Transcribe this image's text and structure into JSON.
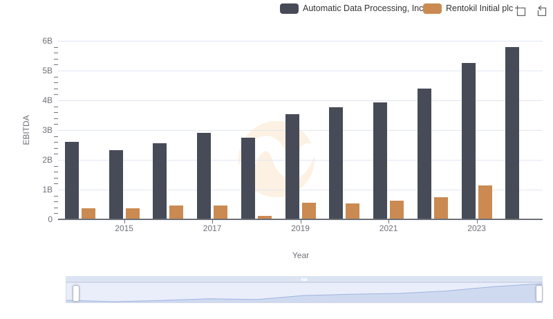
{
  "legend": {
    "items": [
      {
        "label": "Automatic Data Processing, Inc.",
        "color": "#474b58"
      },
      {
        "label": "Rentokil Initial plc",
        "color": "#ca8a51"
      }
    ]
  },
  "toolbox": {
    "zoom_icon": "zoom-box-icon",
    "restore_icon": "restore-icon"
  },
  "chart_data": {
    "type": "bar",
    "title": "",
    "xlabel": "Year",
    "ylabel": "EBITDA",
    "categories": [
      2014,
      2015,
      2016,
      2017,
      2018,
      2019,
      2020,
      2021,
      2022,
      2023,
      2024
    ],
    "series": [
      {
        "name": "Automatic Data Processing, Inc.",
        "key": "adp",
        "color": "#474b58",
        "values": [
          2.6,
          2.33,
          2.56,
          2.9,
          2.74,
          3.53,
          3.76,
          3.93,
          4.4,
          5.25,
          5.8
        ]
      },
      {
        "name": "Rentokil Initial plc",
        "key": "rentokil",
        "color": "#ca8a51",
        "values": [
          0.38,
          0.37,
          0.47,
          0.47,
          0.12,
          0.55,
          0.54,
          0.63,
          0.74,
          1.13,
          null
        ]
      }
    ],
    "unit": "B",
    "ylim": [
      0,
      6
    ],
    "y_tick_labels": [
      "0",
      "1B",
      "2B",
      "3B",
      "4B",
      "5B",
      "6B"
    ],
    "x_tick_labels": [
      "2015",
      "2017",
      "2019",
      "2021",
      "2023"
    ],
    "grid": true,
    "legend_position": "top-right",
    "slider_shadow_series": "Automatic Data Processing, Inc."
  },
  "colors": {
    "grid_line": "#e0e6f0",
    "axis": "#6E7079",
    "axis_text": "#6E7079",
    "legend_text": "#333333",
    "slider_fill": "#cfdaf1",
    "slider_line": "#9fb3de",
    "watermark": "#fcf1e2"
  }
}
